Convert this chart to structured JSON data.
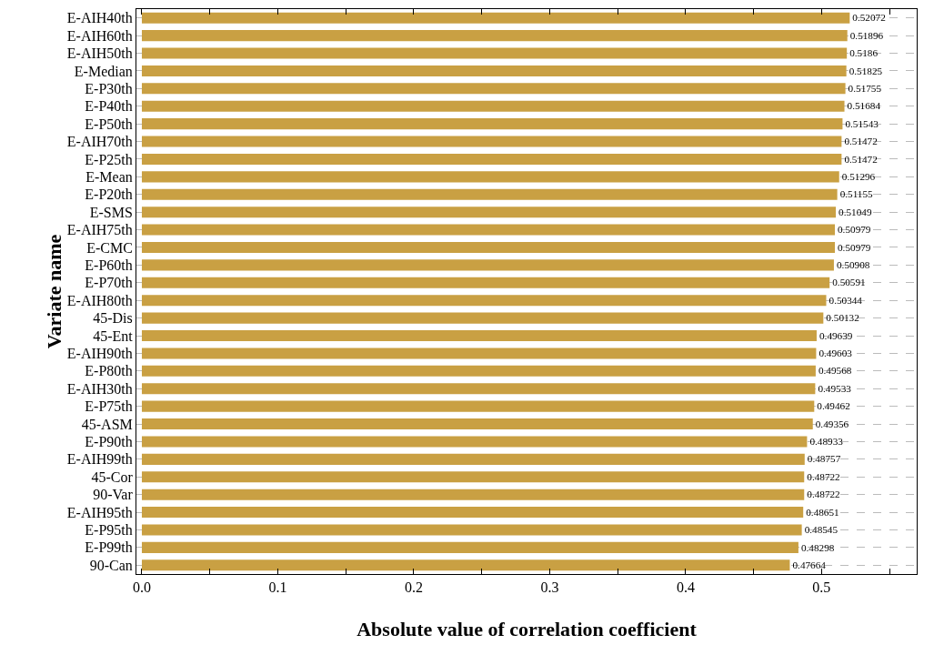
{
  "chart_data": {
    "type": "bar",
    "orientation": "horizontal",
    "xlabel": "Absolute value of correlation coefficient",
    "ylabel": "Variate name",
    "categories": [
      "E-AIH40th",
      "E-AIH60th",
      "E-AIH50th",
      "E-Median",
      "E-P30th",
      "E-P40th",
      "E-P50th",
      "E-AIH70th",
      "E-P25th",
      "E-Mean",
      "E-P20th",
      "E-SMS",
      "E-AIH75th",
      "E-CMC",
      "E-P60th",
      "E-P70th",
      "E-AIH80th",
      "45-Dis",
      "45-Ent",
      "E-AIH90th",
      "E-P80th",
      "E-AIH30th",
      "E-P75th",
      "45-ASM",
      "E-P90th",
      "E-AIH99th",
      "45-Cor",
      "90-Var",
      "E-AIH95th",
      "E-P95th",
      "E-P99th",
      "90-Can"
    ],
    "values": [
      0.52072,
      0.51896,
      0.5186,
      0.51825,
      0.51755,
      0.51684,
      0.51543,
      0.51472,
      0.51472,
      0.51296,
      0.51155,
      0.51049,
      0.50979,
      0.50979,
      0.50908,
      0.50591,
      0.50344,
      0.50132,
      0.49639,
      0.49603,
      0.49568,
      0.49533,
      0.49462,
      0.49356,
      0.48933,
      0.48757,
      0.48722,
      0.48722,
      0.48651,
      0.48545,
      0.48298,
      0.47664
    ],
    "color": "#c9a043",
    "data_labels": true,
    "grid": "y",
    "legend": false,
    "xlim": [
      -0.004,
      0.57
    ],
    "xticks": [
      {
        "value": 0,
        "label": "0.0"
      },
      {
        "value": 0.05,
        "label": null
      },
      {
        "value": 0.1,
        "label": "0.1"
      },
      {
        "value": 0.15,
        "label": null
      },
      {
        "value": 0.2,
        "label": "0.2"
      },
      {
        "value": 0.25,
        "label": null
      },
      {
        "value": 0.3,
        "label": "0.3"
      },
      {
        "value": 0.35,
        "label": null
      },
      {
        "value": 0.4,
        "label": "0.4"
      },
      {
        "value": 0.45,
        "label": null
      },
      {
        "value": 0.5,
        "label": "0.5"
      },
      {
        "value": 0.55,
        "label": null
      }
    ]
  }
}
